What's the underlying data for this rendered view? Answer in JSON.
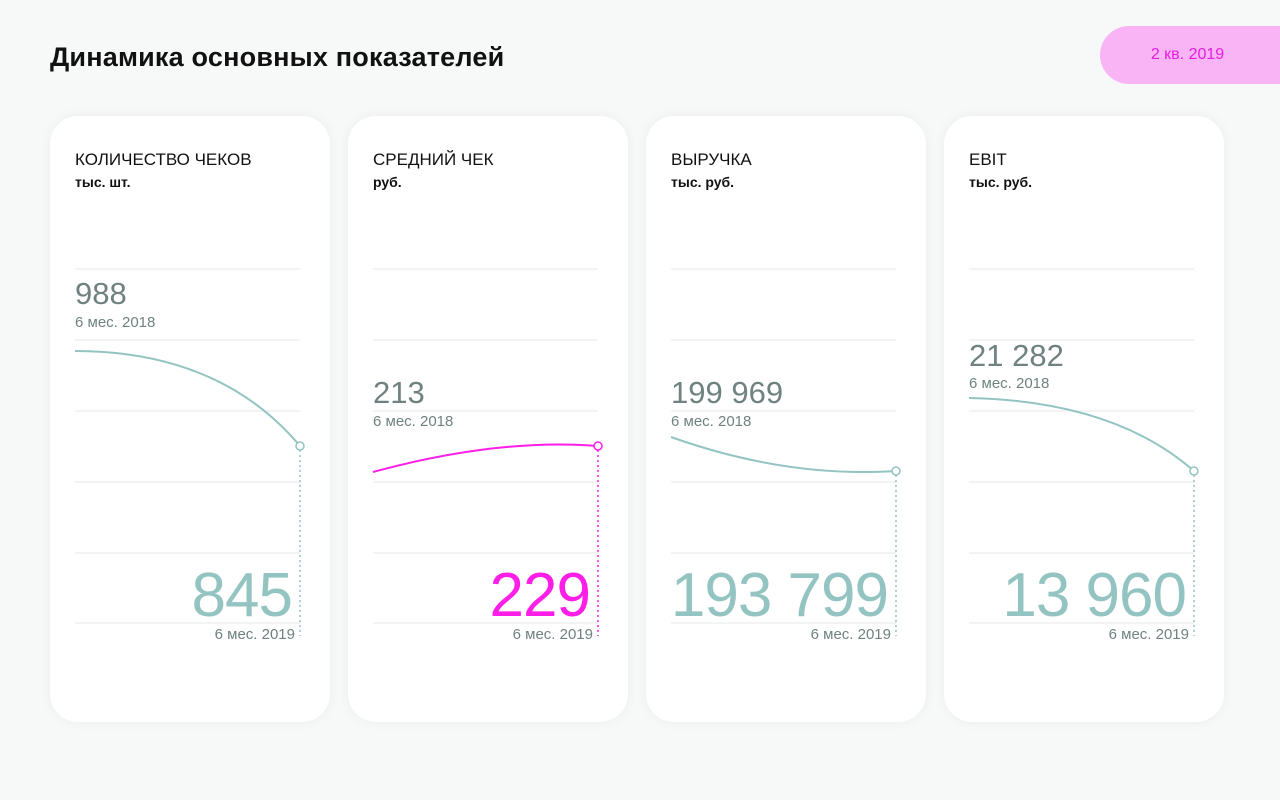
{
  "header": {
    "title": "Динамика основных показателей",
    "period_badge": "2 кв. 2019"
  },
  "colors": {
    "accent_teal": "#93c4c1",
    "accent_pink": "#ff1ee8",
    "badge_bg": "#f9b4f6"
  },
  "cards": [
    {
      "title": "КОЛИЧЕСТВО ЧЕКОВ",
      "unit": "тыс. шт.",
      "prev_value": "988",
      "prev_label": "6 мес. 2018",
      "curr_value": "845",
      "curr_label": "6 мес. 2019"
    },
    {
      "title": "СРЕДНИЙ ЧЕК",
      "unit": "руб.",
      "prev_value": "213",
      "prev_label": "6 мес. 2018",
      "curr_value": "229",
      "curr_label": "6 мес. 2019"
    },
    {
      "title": "ВЫРУЧКА",
      "unit": "тыс. руб.",
      "prev_value": "199 969",
      "prev_label": "6 мес. 2018",
      "curr_value": "193 799",
      "curr_label": "6 мес. 2019"
    },
    {
      "title": "EBIT",
      "unit": "тыс. руб.",
      "prev_value": "21 282",
      "prev_label": "6 мес. 2018",
      "curr_value": "13 960",
      "curr_label": "6 мес. 2019"
    }
  ]
}
